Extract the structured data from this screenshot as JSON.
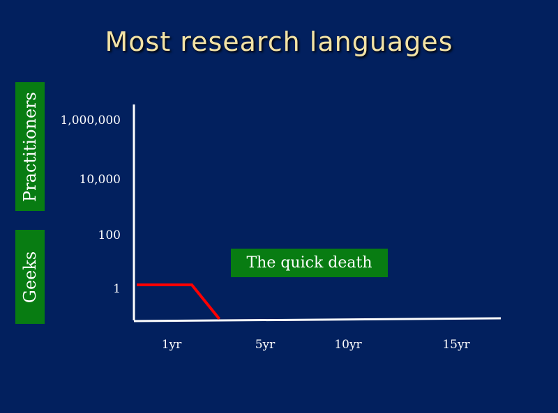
{
  "slide": {
    "title": "Most research languages"
  },
  "labels": {
    "practitioners": "Practitioners",
    "geeks": "Geeks"
  },
  "colors": {
    "background": "#02205e",
    "title": "#f3e3a6",
    "label_box": "#087c12",
    "axis": "#ffffff",
    "series": "#ff0000"
  },
  "chart_data": {
    "type": "line",
    "title": "Most research languages",
    "y_scale": "log",
    "y_ticks": [
      "1,000,000",
      "10,000",
      "100",
      "1"
    ],
    "x_ticks": [
      "1yr",
      "5yr",
      "10yr",
      "15yr"
    ],
    "annotation": "The quick death",
    "series": [
      {
        "color": "#ff0000",
        "points": [
          {
            "x": 0,
            "y": 1
          },
          {
            "x": 1,
            "y": 1
          },
          {
            "x": 1.5,
            "y": 0
          }
        ]
      }
    ]
  }
}
